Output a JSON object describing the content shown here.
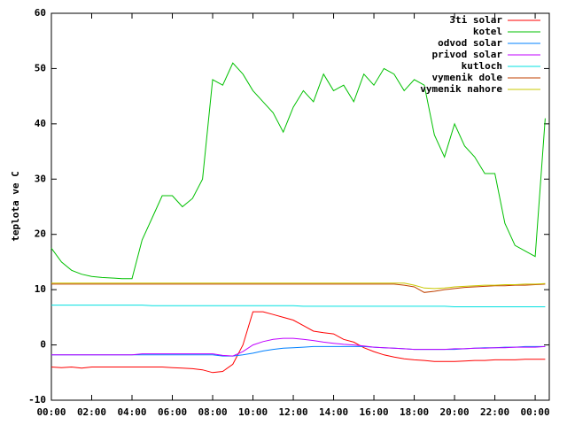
{
  "chart_data": {
    "type": "line",
    "y_label": "teplota ve C",
    "x": [
      0,
      0.5,
      1,
      1.5,
      2,
      2.5,
      3,
      3.5,
      4,
      4.5,
      5,
      5.5,
      6,
      6.5,
      7,
      7.5,
      8,
      8.5,
      9,
      9.5,
      10,
      10.5,
      11,
      11.5,
      12,
      12.5,
      13,
      13.5,
      14,
      14.5,
      15,
      15.5,
      16,
      16.5,
      17,
      17.5,
      18,
      18.5,
      19,
      19.5,
      20,
      20.5,
      21,
      21.5,
      22,
      22.5,
      23,
      23.5,
      24,
      24.5
    ],
    "xlim": [
      0,
      24.7
    ],
    "xticks": [
      {
        "value": 0,
        "label": "00:00"
      },
      {
        "value": 2,
        "label": "02:00"
      },
      {
        "value": 4,
        "label": "04:00"
      },
      {
        "value": 6,
        "label": "06:00"
      },
      {
        "value": 8,
        "label": "08:00"
      },
      {
        "value": 10,
        "label": "10:00"
      },
      {
        "value": 12,
        "label": "12:00"
      },
      {
        "value": 14,
        "label": "14:00"
      },
      {
        "value": 16,
        "label": "16:00"
      },
      {
        "value": 18,
        "label": "18:00"
      },
      {
        "value": 20,
        "label": "20:00"
      },
      {
        "value": 22,
        "label": "22:00"
      },
      {
        "value": 24,
        "label": "00:00"
      }
    ],
    "ylim": [
      -10,
      60
    ],
    "yticks": [
      -10,
      0,
      10,
      20,
      30,
      40,
      50,
      60
    ],
    "legend": "top-right",
    "series": [
      {
        "name": "3ti solar",
        "color": "#ff0000",
        "values": [
          -4,
          -4.1,
          -4,
          -4.2,
          -4,
          -4,
          -4,
          -4,
          -4,
          -4,
          -4,
          -4,
          -4.1,
          -4.2,
          -4.3,
          -4.5,
          -5,
          -4.8,
          -3.5,
          0,
          6,
          6,
          5.5,
          5,
          4.5,
          3.5,
          2.5,
          2.2,
          2,
          1,
          0.5,
          -0.5,
          -1.2,
          -1.8,
          -2.2,
          -2.5,
          -2.7,
          -2.8,
          -3,
          -3,
          -3,
          -2.9,
          -2.8,
          -2.8,
          -2.7,
          -2.7,
          -2.7,
          -2.6,
          -2.6,
          -2.6
        ]
      },
      {
        "name": "kotel",
        "color": "#00c000",
        "values": [
          17.5,
          15,
          13.5,
          12.8,
          12.4,
          12.2,
          12.1,
          12,
          12,
          19,
          23,
          27,
          27,
          25,
          26.5,
          30,
          48,
          47,
          51,
          49,
          46,
          44,
          42,
          38.5,
          43,
          46,
          44,
          49,
          46,
          47,
          44,
          49,
          47,
          50,
          49,
          46,
          48,
          47,
          38,
          34,
          40,
          36,
          34,
          31,
          31,
          22,
          18,
          17,
          16,
          41
        ]
      },
      {
        "name": "odvod solar",
        "color": "#0080ff",
        "values": [
          -1.8,
          -1.8,
          -1.8,
          -1.8,
          -1.8,
          -1.8,
          -1.8,
          -1.8,
          -1.8,
          -1.8,
          -1.8,
          -1.8,
          -1.8,
          -1.8,
          -1.8,
          -1.8,
          -1.8,
          -2,
          -2,
          -1.8,
          -1.5,
          -1.1,
          -0.8,
          -0.6,
          -0.5,
          -0.4,
          -0.3,
          -0.3,
          -0.3,
          -0.3,
          -0.3,
          -0.3,
          -0.4,
          -0.5,
          -0.6,
          -0.7,
          -0.8,
          -0.8,
          -0.8,
          -0.8,
          -0.8,
          -0.7,
          -0.6,
          -0.5,
          -0.5,
          -0.4,
          -0.4,
          -0.3,
          -0.3,
          -0.3
        ]
      },
      {
        "name": "privod solar",
        "color": "#c000ff",
        "values": [
          -1.8,
          -1.8,
          -1.8,
          -1.8,
          -1.8,
          -1.8,
          -1.8,
          -1.8,
          -1.8,
          -1.6,
          -1.6,
          -1.6,
          -1.6,
          -1.6,
          -1.6,
          -1.6,
          -1.6,
          -1.9,
          -2,
          -1.2,
          0,
          0.6,
          1,
          1.2,
          1.2,
          1,
          0.8,
          0.5,
          0.3,
          0.1,
          0,
          -0.2,
          -0.4,
          -0.5,
          -0.6,
          -0.7,
          -0.8,
          -0.8,
          -0.8,
          -0.8,
          -0.7,
          -0.7,
          -0.6,
          -0.6,
          -0.5,
          -0.5,
          -0.4,
          -0.4,
          -0.4,
          -0.3
        ]
      },
      {
        "name": "kutloch",
        "color": "#00e0e0",
        "values": [
          7.2,
          7.2,
          7.2,
          7.2,
          7.2,
          7.2,
          7.2,
          7.2,
          7.2,
          7.2,
          7.1,
          7.1,
          7.1,
          7.1,
          7.1,
          7.1,
          7.1,
          7.1,
          7.1,
          7.1,
          7.1,
          7.1,
          7.1,
          7.1,
          7.1,
          7,
          7,
          7,
          7,
          7,
          7,
          7,
          7,
          7,
          7,
          7,
          7,
          7,
          7,
          7,
          6.9,
          6.9,
          6.9,
          6.9,
          6.9,
          6.9,
          6.9,
          6.9,
          6.9,
          6.9
        ]
      },
      {
        "name": "vymenik dole",
        "color": "#c04000",
        "values": [
          11,
          11,
          11,
          11,
          11,
          11,
          11,
          11,
          11,
          11,
          11,
          11,
          11,
          11,
          11,
          11,
          11,
          11,
          11,
          11,
          11,
          11,
          11,
          11,
          11,
          11,
          11,
          11,
          11,
          11,
          11,
          11,
          11,
          11,
          11,
          10.8,
          10.5,
          9.5,
          9.7,
          10,
          10.2,
          10.4,
          10.5,
          10.6,
          10.7,
          10.7,
          10.8,
          10.8,
          10.9,
          11
        ]
      },
      {
        "name": "vymenik nahore",
        "color": "#c8c800",
        "values": [
          11.2,
          11.2,
          11.2,
          11.2,
          11.2,
          11.2,
          11.2,
          11.2,
          11.2,
          11.2,
          11.2,
          11.2,
          11.2,
          11.2,
          11.2,
          11.2,
          11.2,
          11.2,
          11.2,
          11.2,
          11.2,
          11.2,
          11.2,
          11.2,
          11.2,
          11.2,
          11.2,
          11.2,
          11.2,
          11.2,
          11.2,
          11.2,
          11.2,
          11.2,
          11.2,
          11.2,
          10.8,
          10.3,
          10.2,
          10.3,
          10.5,
          10.6,
          10.7,
          10.8,
          10.8,
          10.9,
          10.9,
          11,
          11,
          11.1
        ]
      }
    ]
  }
}
